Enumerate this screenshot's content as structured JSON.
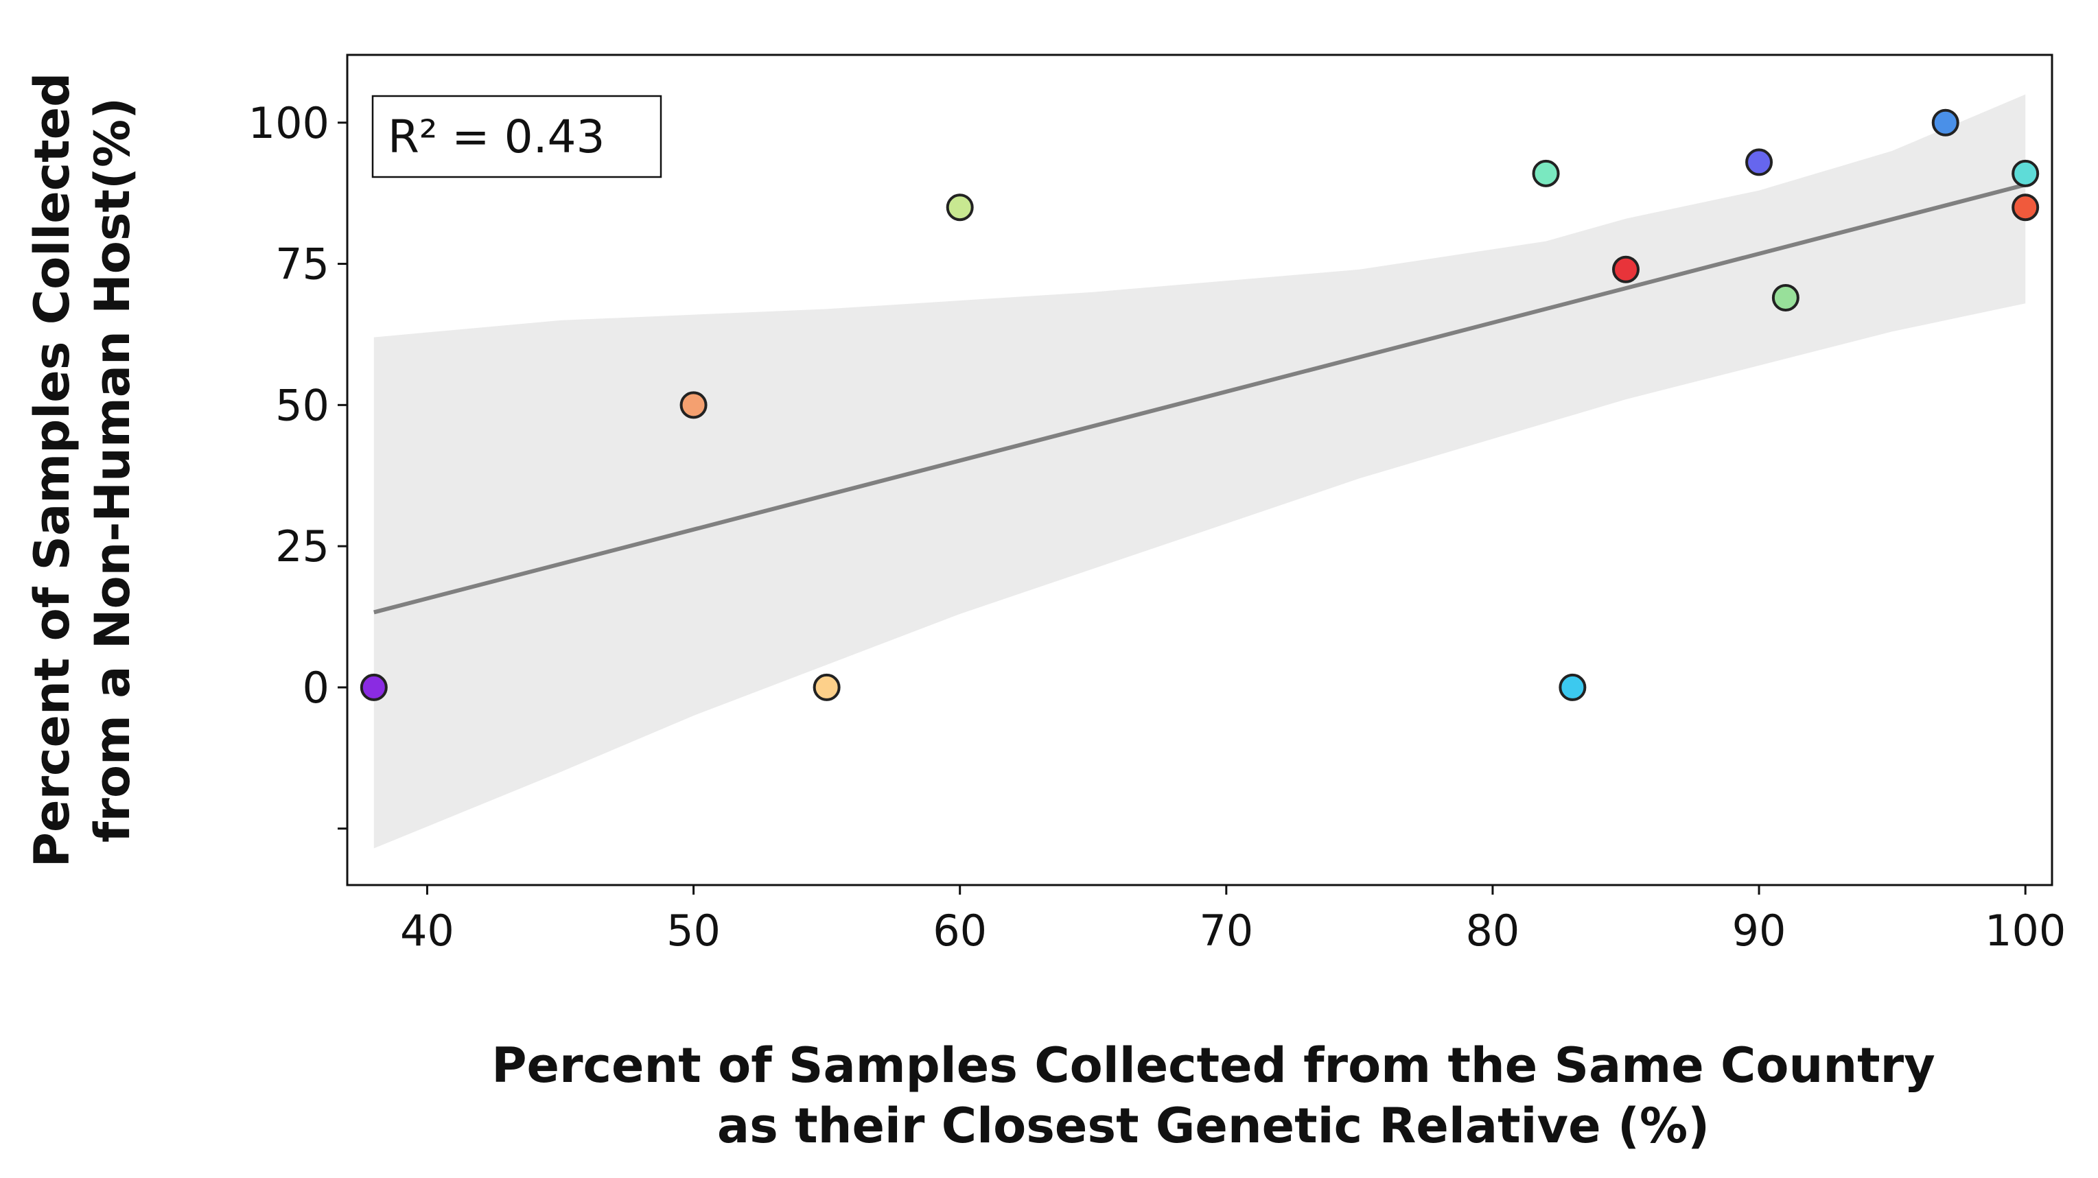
{
  "chart_data": {
    "type": "scatter",
    "xlabel": [
      "Percent of Samples Collected from the Same Country",
      "as their Closest Genetic Relative (%)"
    ],
    "ylabel": [
      "Percent of Samples Collected",
      "from a Non-Human Host(%)"
    ],
    "xlim": [
      37,
      101
    ],
    "ylim": [
      -35,
      112
    ],
    "x_ticks": [
      40,
      50,
      60,
      70,
      80,
      90,
      100
    ],
    "y_ticks": [
      -25,
      0,
      25,
      50,
      75,
      100
    ],
    "y_tick_labels": [
      "",
      "0",
      "25",
      "50",
      "75",
      "100"
    ],
    "grid": false,
    "points": [
      {
        "x": 38,
        "y": 0,
        "color": "#8a2be2"
      },
      {
        "x": 50,
        "y": 50,
        "color": "#f4a070"
      },
      {
        "x": 55,
        "y": 0,
        "color": "#fdd08a"
      },
      {
        "x": 60,
        "y": 85,
        "color": "#c8e891"
      },
      {
        "x": 82,
        "y": 91,
        "color": "#7ae8c0"
      },
      {
        "x": 83,
        "y": 0,
        "color": "#3cc9ef"
      },
      {
        "x": 85,
        "y": 74,
        "color": "#e8343a"
      },
      {
        "x": 90,
        "y": 93,
        "color": "#6666ee"
      },
      {
        "x": 91,
        "y": 69,
        "color": "#98e09a"
      },
      {
        "x": 97,
        "y": 100,
        "color": "#4a90e8"
      },
      {
        "x": 100,
        "y": 91,
        "color": "#5edcd8"
      },
      {
        "x": 100,
        "y": 85,
        "color": "#f05a3c"
      }
    ],
    "regression": {
      "x": [
        38,
        100
      ],
      "y": [
        13.3,
        89
      ],
      "color": "#808080",
      "ci_upper": [
        [
          38,
          62
        ],
        [
          45,
          65
        ],
        [
          55,
          67
        ],
        [
          65,
          70
        ],
        [
          75,
          74
        ],
        [
          82,
          79
        ],
        [
          85,
          83
        ],
        [
          90,
          88
        ],
        [
          95,
          95
        ],
        [
          100,
          105
        ]
      ],
      "ci_lower": [
        [
          38,
          -28.5
        ],
        [
          45,
          -15
        ],
        [
          50,
          -5
        ],
        [
          55,
          4
        ],
        [
          60,
          13
        ],
        [
          65,
          21
        ],
        [
          70,
          29
        ],
        [
          75,
          37
        ],
        [
          80,
          44
        ],
        [
          85,
          51
        ],
        [
          90,
          57
        ],
        [
          95,
          63
        ],
        [
          100,
          68
        ]
      ],
      "ci_color": "#ebebeb"
    },
    "annotation": "R² = 0.43"
  }
}
